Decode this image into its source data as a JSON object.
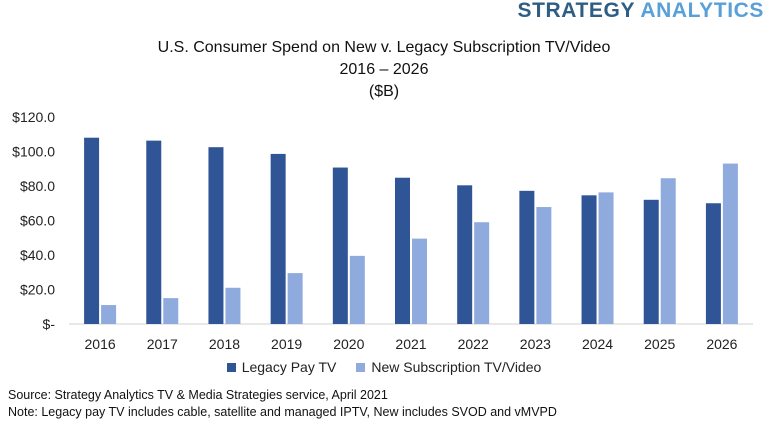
{
  "brand": {
    "word1": "STRATEGY",
    "word2": "ANALYTICS",
    "color1": "#2f5e85",
    "color2": "#5aa0d8"
  },
  "chart_data": {
    "type": "bar",
    "title": "U.S. Consumer Spend on New v. Legacy Subscription TV/Video",
    "subtitle": "2016 – 2026",
    "unit_label": "($B)",
    "categories": [
      "2016",
      "2017",
      "2018",
      "2019",
      "2020",
      "2021",
      "2022",
      "2023",
      "2024",
      "2025",
      "2026"
    ],
    "series": [
      {
        "name": "Legacy Pay TV",
        "color": "#2f5597",
        "values": [
          108.0,
          106.3,
          102.5,
          98.6,
          90.7,
          84.8,
          80.4,
          77.2,
          74.6,
          72.0,
          70.0
        ]
      },
      {
        "name": "New Subscription TV/Video",
        "color": "#8faadc",
        "values": [
          11.0,
          15.0,
          21.0,
          29.5,
          39.5,
          49.5,
          59.0,
          67.8,
          76.3,
          84.5,
          93.0
        ]
      }
    ],
    "y_ticks": [
      0,
      20,
      40,
      60,
      80,
      100,
      120
    ],
    "y_tick_labels": [
      "$-",
      "$20.0",
      "$40.0",
      "$60.0",
      "$80.0",
      "$100.0",
      "$120.0"
    ],
    "ylim": [
      0,
      120
    ],
    "grid": false,
    "legend_position": "bottom"
  },
  "footer": {
    "source": "Source: Strategy Analytics TV & Media Strategies service, April 2021",
    "note": "Note: Legacy pay TV includes cable, satellite and managed IPTV, New includes SVOD and vMVPD"
  }
}
